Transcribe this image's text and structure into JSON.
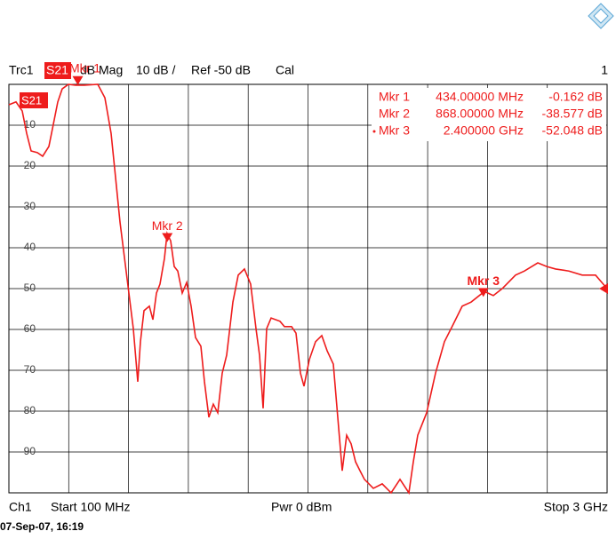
{
  "chart_data": {
    "type": "line",
    "header": {
      "trace": "Trc1",
      "format": "dB Mag",
      "scale": "10 dB /",
      "cal": "Cal",
      "window": "1"
    },
    "footer": {
      "channel": "Ch1",
      "start": "Start 100 MHz",
      "power": "Pwr 0 dBm",
      "stop": "Stop 3 GHz",
      "timestamp": "07-Sep-07, 16:19"
    },
    "ref_level": {
      "value": -50,
      "label": "Ref -50 dB"
    },
    "xlim": [
      100,
      3000
    ],
    "xticks": [
      100,
      390,
      680,
      970,
      1260,
      1550,
      1840,
      2130,
      2420,
      2710,
      3000
    ],
    "ylim": [
      -100,
      0
    ],
    "yticks": [
      -10,
      -20,
      -30,
      -40,
      -50,
      -60,
      -70,
      -80,
      -90
    ],
    "grid": true,
    "x": [
      100,
      134.5,
      164.6,
      186.2,
      207.7,
      237.9,
      263.7,
      293.9,
      315.4,
      337,
      358.5,
      388.7,
      423.2,
      466.3,
      530.9,
      565.4,
      595.5,
      617.1,
      638.6,
      660.2,
      681.7,
      703.2,
      724.8,
      737.7,
      755,
      780.8,
      798.1,
      815.3,
      832.5,
      854.1,
      867,
      884.2,
      901.5,
      918.7,
      940.3,
      961.8,
      983.3,
      1004.9,
      1030.7,
      1048,
      1069.5,
      1091,
      1112.6,
      1134.2,
      1155.7,
      1185.9,
      1211.7,
      1241.9,
      1272,
      1297.9,
      1315.1,
      1332.4,
      1349.6,
      1371.2,
      1414.2,
      1435.8,
      1470.3,
      1491.8,
      1513.4,
      1530.6,
      1556.4,
      1586.6,
      1616.8,
      1642.6,
      1672.8,
      1694.3,
      1715.9,
      1737.4,
      1759,
      1780.5,
      1802.1,
      1823.6,
      1866.7,
      1909.8,
      1952.9,
      1996,
      2039,
      2060.6,
      2082.1,
      2125.2,
      2168.3,
      2211.4,
      2254.5,
      2297.6,
      2340.7,
      2405.3,
      2448.4,
      2491.5,
      2556.1,
      2599.2,
      2663.9,
      2707,
      2750,
      2814.7,
      2879.3,
      2943.9,
      3000
    ],
    "series": [
      {
        "name": "S21",
        "color": "#ee1c1c",
        "values": [
          -5,
          -4.3,
          -6.5,
          -12,
          -16.3,
          -16.7,
          -17.6,
          -15.2,
          -9.8,
          -4.3,
          -1.1,
          0,
          -0.2,
          -0.2,
          0,
          -3.3,
          -12,
          -22.8,
          -33.7,
          -42.4,
          -51.1,
          -59.8,
          -72.8,
          -63,
          -55.4,
          -54.3,
          -57.6,
          -51.1,
          -48.9,
          -42.6,
          -36.5,
          -38.3,
          -44.6,
          -45.7,
          -51.1,
          -48.5,
          -54.3,
          -62,
          -64.1,
          -72.8,
          -81.5,
          -78.3,
          -80.4,
          -70.7,
          -66.3,
          -53.3,
          -46.7,
          -45.2,
          -48.9,
          -59.8,
          -66.3,
          -79.3,
          -59.8,
          -57.2,
          -58,
          -59.3,
          -59.3,
          -60.9,
          -70.7,
          -73.9,
          -67.4,
          -63,
          -61.5,
          -65.2,
          -68.5,
          -81.5,
          -94.6,
          -85.9,
          -88,
          -92.4,
          -94.6,
          -96.7,
          -98.9,
          -97.8,
          -100,
          -96.7,
          -100,
          -92.4,
          -85.9,
          -80.4,
          -70.7,
          -63,
          -58.7,
          -54.3,
          -53.3,
          -50.7,
          -51.7,
          -50,
          -46.7,
          -45.7,
          -43.7,
          -44.6,
          -45.2,
          -45.7,
          -46.7,
          -46.7,
          -50
        ]
      }
    ],
    "markers": [
      {
        "label": "Mkr 1",
        "x": 434,
        "x_label": "434.00000 MHz",
        "value": -0.162,
        "value_label": "-0.162 dB"
      },
      {
        "label": "Mkr 2",
        "x": 868,
        "x_label": "868.00000 MHz",
        "value": -38.577,
        "value_label": "-38.577 dB"
      },
      {
        "label": "Mkr 3",
        "x": 2400,
        "x_label": "2.400000 GHz",
        "value": -52.048,
        "value_label": "-52.048 dB"
      }
    ]
  }
}
